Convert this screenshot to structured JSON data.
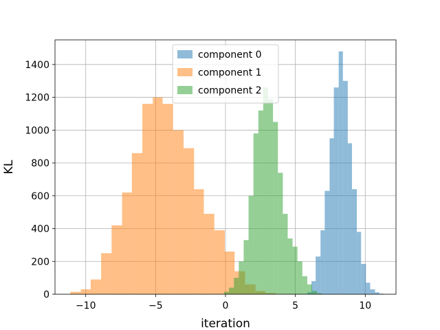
{
  "chart_data": {
    "type": "histogram",
    "xlabel": "iteration",
    "ylabel": "KL",
    "xlim": [
      -12.2,
      12.2
    ],
    "ylim": [
      0,
      1550
    ],
    "xticks": [
      -10,
      -5,
      0,
      5,
      10
    ],
    "xtick_labels": [
      "−10",
      "−5",
      "0",
      "5",
      "10"
    ],
    "yticks": [
      0,
      200,
      400,
      600,
      800,
      1000,
      1200,
      1400
    ],
    "grid": true,
    "legend_position": "top-center",
    "series": [
      {
        "name": "component 0",
        "color": "#1f77b4",
        "opacity": 0.5,
        "bins": [
          {
            "x0": 5.85,
            "x1": 6.15,
            "count": 12
          },
          {
            "x0": 6.15,
            "x1": 6.45,
            "count": 80
          },
          {
            "x0": 6.45,
            "x1": 6.8,
            "count": 230
          },
          {
            "x0": 6.8,
            "x1": 7.1,
            "count": 390
          },
          {
            "x0": 7.1,
            "x1": 7.45,
            "count": 630
          },
          {
            "x0": 7.45,
            "x1": 7.75,
            "count": 950
          },
          {
            "x0": 7.75,
            "x1": 8.1,
            "count": 1260
          },
          {
            "x0": 8.1,
            "x1": 8.4,
            "count": 1480
          },
          {
            "x0": 8.4,
            "x1": 8.75,
            "count": 1300
          },
          {
            "x0": 8.75,
            "x1": 9.05,
            "count": 920
          },
          {
            "x0": 9.05,
            "x1": 9.4,
            "count": 640
          },
          {
            "x0": 9.4,
            "x1": 9.7,
            "count": 380
          },
          {
            "x0": 9.7,
            "x1": 10.05,
            "count": 185
          },
          {
            "x0": 10.05,
            "x1": 10.35,
            "count": 70
          },
          {
            "x0": 10.35,
            "x1": 10.7,
            "count": 30
          },
          {
            "x0": 10.7,
            "x1": 11.0,
            "count": 12
          },
          {
            "x0": 11.0,
            "x1": 11.3,
            "count": 4
          }
        ]
      },
      {
        "name": "component 1",
        "color": "#ff7f0e",
        "opacity": 0.5,
        "bins": [
          {
            "x0": -11.1,
            "x1": -10.35,
            "count": 15
          },
          {
            "x0": -10.35,
            "x1": -9.65,
            "count": 30
          },
          {
            "x0": -9.65,
            "x1": -8.9,
            "count": 90
          },
          {
            "x0": -8.9,
            "x1": -8.15,
            "count": 250
          },
          {
            "x0": -8.15,
            "x1": -7.4,
            "count": 420
          },
          {
            "x0": -7.4,
            "x1": -6.7,
            "count": 620
          },
          {
            "x0": -6.7,
            "x1": -5.95,
            "count": 860
          },
          {
            "x0": -5.95,
            "x1": -5.2,
            "count": 1160
          },
          {
            "x0": -5.2,
            "x1": -4.5,
            "count": 1200
          },
          {
            "x0": -4.5,
            "x1": -3.75,
            "count": 1160
          },
          {
            "x0": -3.75,
            "x1": -3.0,
            "count": 1000
          },
          {
            "x0": -3.0,
            "x1": -2.25,
            "count": 890
          },
          {
            "x0": -2.25,
            "x1": -1.55,
            "count": 640
          },
          {
            "x0": -1.55,
            "x1": -0.8,
            "count": 490
          },
          {
            "x0": -0.8,
            "x1": -0.05,
            "count": 390
          },
          {
            "x0": -0.05,
            "x1": 0.65,
            "count": 260
          },
          {
            "x0": 0.65,
            "x1": 1.4,
            "count": 140
          },
          {
            "x0": 1.4,
            "x1": 2.15,
            "count": 60
          },
          {
            "x0": 2.15,
            "x1": 2.85,
            "count": 20
          },
          {
            "x0": 2.85,
            "x1": 3.6,
            "count": 8
          },
          {
            "x0": 3.6,
            "x1": 4.35,
            "count": 2
          }
        ]
      },
      {
        "name": "component 2",
        "color": "#2ca02c",
        "opacity": 0.5,
        "bins": [
          {
            "x0": -0.1,
            "x1": 0.25,
            "count": 15
          },
          {
            "x0": 0.25,
            "x1": 0.6,
            "count": 40
          },
          {
            "x0": 0.6,
            "x1": 0.95,
            "count": 100
          },
          {
            "x0": 0.95,
            "x1": 1.3,
            "count": 200
          },
          {
            "x0": 1.3,
            "x1": 1.65,
            "count": 330
          },
          {
            "x0": 1.65,
            "x1": 2.0,
            "count": 600
          },
          {
            "x0": 2.0,
            "x1": 2.35,
            "count": 980
          },
          {
            "x0": 2.35,
            "x1": 2.7,
            "count": 1120
          },
          {
            "x0": 2.7,
            "x1": 3.05,
            "count": 1260
          },
          {
            "x0": 3.05,
            "x1": 3.4,
            "count": 1190
          },
          {
            "x0": 3.4,
            "x1": 3.75,
            "count": 1050
          },
          {
            "x0": 3.75,
            "x1": 4.1,
            "count": 740
          },
          {
            "x0": 4.1,
            "x1": 4.45,
            "count": 490
          },
          {
            "x0": 4.45,
            "x1": 4.8,
            "count": 340
          },
          {
            "x0": 4.8,
            "x1": 5.15,
            "count": 290
          },
          {
            "x0": 5.15,
            "x1": 5.5,
            "count": 200
          },
          {
            "x0": 5.5,
            "x1": 5.85,
            "count": 110
          },
          {
            "x0": 5.85,
            "x1": 6.2,
            "count": 60
          },
          {
            "x0": 6.2,
            "x1": 6.55,
            "count": 20
          },
          {
            "x0": 6.55,
            "x1": 6.9,
            "count": 6
          }
        ]
      }
    ]
  }
}
